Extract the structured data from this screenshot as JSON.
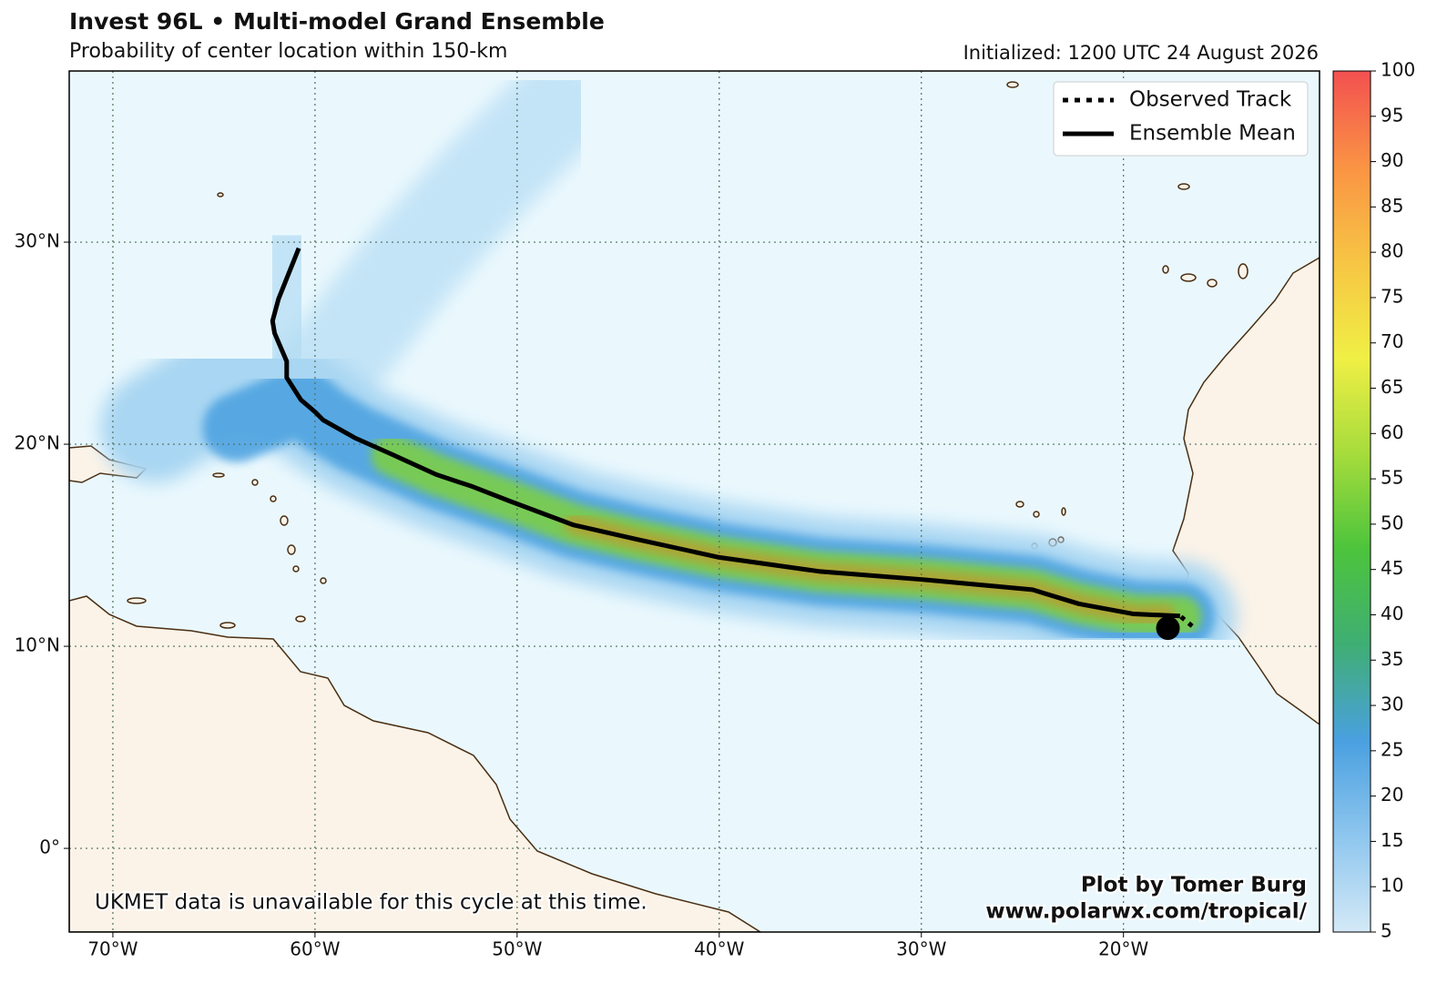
{
  "chart_data": {
    "type": "map",
    "title": "Invest 96L • Multi-model Grand Ensemble",
    "subtitle": "Probability of center location within 150-km",
    "initialized": "Initialized: 1200 UTC 24 August 2026",
    "xlim": [
      -72.16,
      -10.3
    ],
    "ylim": [
      -4.14,
      38.47
    ],
    "xticks": [
      {
        "value": -70,
        "label": "70°W"
      },
      {
        "value": -60,
        "label": "60°W"
      },
      {
        "value": -50,
        "label": "50°W"
      },
      {
        "value": -40,
        "label": "40°W"
      },
      {
        "value": -30,
        "label": "30°W"
      },
      {
        "value": -20,
        "label": "20°W"
      }
    ],
    "yticks": [
      {
        "value": 0,
        "label": "0°"
      },
      {
        "value": 10,
        "label": "10°N"
      },
      {
        "value": 20,
        "label": "20°N"
      },
      {
        "value": 30,
        "label": "30°N"
      }
    ],
    "grid": true,
    "legend_position": "upper right",
    "series": [
      {
        "name": "Observed Track",
        "color": "#000000",
        "style": "dotted",
        "x": [
          -16.6,
          -17.2
        ],
        "y": [
          11.0,
          11.5
        ]
      },
      {
        "name": "Ensemble Mean",
        "color": "#000000",
        "style": "solid",
        "x": [
          -17.2,
          -19.5,
          -22.2,
          -24.5,
          -29.9,
          -35.0,
          -40.0,
          -44.1,
          -47.2,
          -50.4,
          -52.2,
          -54.0,
          -56.2,
          -58.0,
          -59.6,
          -60.0,
          -60.7,
          -61.4,
          -61.4,
          -62.0,
          -62.1,
          -61.8,
          -60.8
        ],
        "y": [
          11.5,
          11.6,
          12.1,
          12.8,
          13.3,
          13.7,
          14.4,
          15.3,
          16.0,
          17.2,
          17.9,
          18.5,
          19.5,
          20.3,
          21.2,
          21.6,
          22.2,
          23.3,
          24.1,
          25.5,
          26.1,
          27.2,
          29.7
        ]
      }
    ],
    "initial_position": {
      "x": -17.8,
      "y": 10.9
    },
    "colorbar": {
      "lim": [
        5,
        100
      ],
      "ticks": [
        5,
        10,
        15,
        20,
        25,
        30,
        35,
        40,
        45,
        50,
        55,
        60,
        65,
        70,
        75,
        80,
        85,
        90,
        95,
        100
      ],
      "colors": [
        "#d4e9f7",
        "#8ec6ee",
        "#4aa0e0",
        "#3fae74",
        "#4cc43c",
        "#a6dc3c",
        "#f0ef45",
        "#f7c544",
        "#fa9344",
        "#f35050"
      ]
    },
    "annotations": {
      "note": "UKMET data is unavailable for this cycle at this time.",
      "credit": "Plot by Tomer Burg",
      "url": "www.polarwx.com/tropical/"
    }
  }
}
